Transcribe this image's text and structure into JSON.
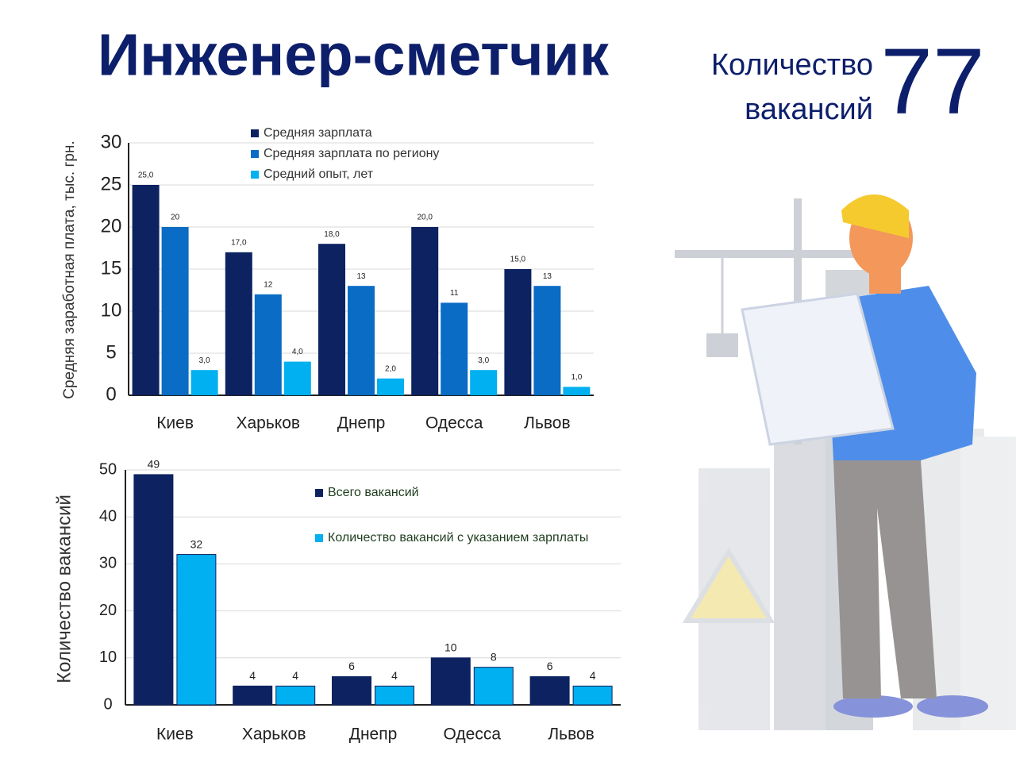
{
  "header": {
    "title": "Инженер-сметчик",
    "vacancies_label": [
      "Количество",
      "вакансий"
    ],
    "vacancies_count": 77
  },
  "chart_data": [
    {
      "type": "bar",
      "ylabel": "Средняя заработная плата, тыс. грн.",
      "categories": [
        "Киев",
        "Харьков",
        "Днепр",
        "Одесса",
        "Львов"
      ],
      "series": [
        {
          "name": "Средняя зарплата",
          "color": "#0d2260",
          "values": [
            25,
            17,
            18,
            20,
            15
          ],
          "value_labels": [
            "25,0",
            "17,0",
            "18,0",
            "20,0",
            "15,0"
          ]
        },
        {
          "name": "Средняя зарплата по региону",
          "color": "#0a6cc4",
          "values": [
            20,
            12,
            13,
            11,
            13
          ]
        },
        {
          "name": "Средний опыт, лет",
          "color": "#00b0f0",
          "values": [
            3,
            4,
            2,
            3,
            1
          ],
          "value_labels": [
            "3,0",
            "4,0",
            "2,0",
            "3,0",
            "1,0"
          ]
        }
      ],
      "ylim": [
        0,
        30
      ],
      "yticks": [
        0,
        5,
        10,
        15,
        20,
        25,
        30
      ],
      "grid": true
    },
    {
      "type": "bar",
      "ylabel": "Количество вакансий",
      "categories": [
        "Киев",
        "Харьков",
        "Днепр",
        "Одесса",
        "Львов"
      ],
      "series": [
        {
          "name": "Всего вакансий",
          "color": "#0d2260",
          "values": [
            49,
            4,
            6,
            10,
            6
          ]
        },
        {
          "name": "Количество вакансий с указанием зарплаты",
          "color": "#00b0f0",
          "values": [
            32,
            4,
            4,
            8,
            4
          ]
        }
      ],
      "ylim": [
        0,
        50
      ],
      "yticks": [
        0,
        10,
        20,
        30,
        40,
        50
      ],
      "grid": true
    }
  ]
}
